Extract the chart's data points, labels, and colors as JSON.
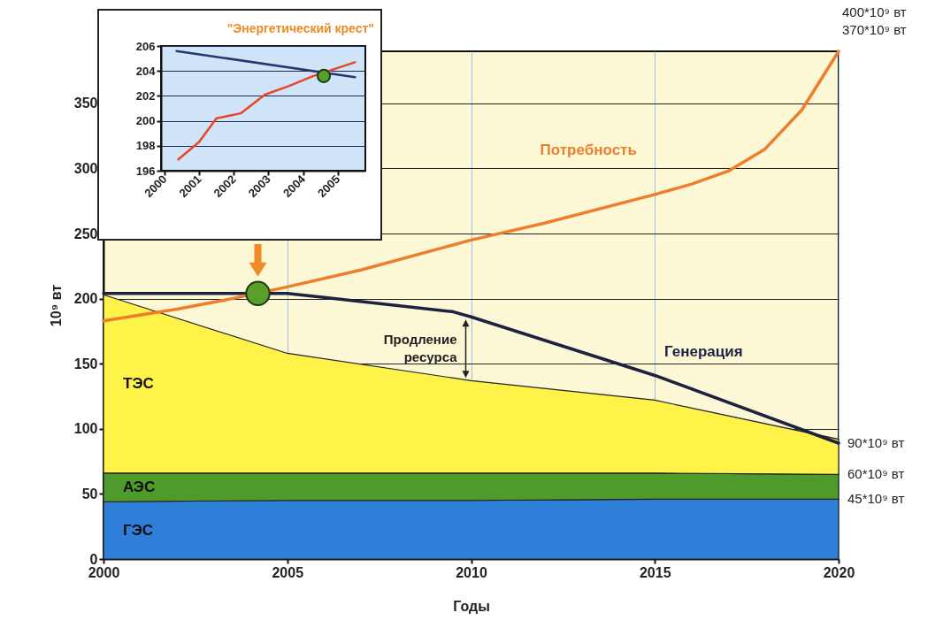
{
  "chart_data": [
    {
      "type": "area",
      "stacked": true,
      "xlabel": "Годы",
      "ylabel": "10⁹ вт",
      "x": [
        2000,
        2005,
        2010,
        2015,
        2020
      ],
      "xlim": [
        2000,
        2020
      ],
      "xticks": [
        2000,
        2005,
        2010,
        2015,
        2020
      ],
      "ylim": [
        0,
        390
      ],
      "yticks": [
        0,
        50,
        100,
        150,
        200,
        250,
        300,
        350
      ],
      "grid": true,
      "annotations": [
        "400*10⁹ вт",
        "370*10⁹ вт",
        "90*10⁹ вт",
        "60*10⁹ вт",
        "45*10⁹ вт",
        "Продление ресурса"
      ],
      "series": [
        {
          "name": "ГЭС",
          "color": "#2f7fd8",
          "values": [
            44,
            45,
            45,
            46,
            46
          ]
        },
        {
          "name": "АЭС",
          "color": "#4e9a2a",
          "values": [
            22,
            21,
            21,
            20,
            19
          ]
        },
        {
          "name": "ТЭС",
          "color": "#fff34a",
          "values": [
            137,
            92,
            71,
            56,
            27
          ]
        },
        {
          "name": "Генерация",
          "type": "line",
          "color": "#1e2140",
          "x": [
            2000,
            2005,
            2006,
            2009.5,
            2010,
            2015,
            2020
          ],
          "values": [
            204,
            204,
            201,
            190,
            186,
            141,
            89
          ]
        },
        {
          "name": "Потребность",
          "type": "line",
          "color": "#ee7d2c",
          "x": [
            2000,
            2002,
            2003.5,
            2005,
            2007,
            2010,
            2012,
            2015,
            2016,
            2017,
            2018,
            2019,
            2020
          ],
          "values": [
            183,
            192,
            200,
            209,
            222,
            245,
            258,
            280,
            288,
            298,
            315,
            345,
            390
          ]
        },
        {
          "type": "scatter",
          "color": "#5a9e2c",
          "x": [
            2004.2
          ],
          "values": [
            204
          ]
        }
      ]
    },
    {
      "type": "line",
      "title": "\"Энергетический крест\"",
      "xlim": [
        1999.9,
        2005.8
      ],
      "xticks": [
        2000,
        2001,
        2002,
        2003,
        2004,
        2005
      ],
      "ylim": [
        196,
        206
      ],
      "yticks": [
        196,
        198,
        200,
        202,
        204,
        206
      ],
      "grid": "y",
      "series": [
        {
          "color": "#2a3570",
          "x": [
            2000.35,
            2005.5
          ],
          "values": [
            205.6,
            203.5
          ]
        },
        {
          "color": "#e8452a",
          "x": [
            2000.4,
            2001,
            2001.5,
            2002.2,
            2002.9,
            2003.6,
            2004.3,
            2005.5
          ],
          "values": [
            196.9,
            198.3,
            200.2,
            200.6,
            202.1,
            202.8,
            203.6,
            204.7
          ]
        },
        {
          "type": "scatter",
          "color": "#5a9e2c",
          "x": [
            2004.6
          ],
          "values": [
            203.6
          ]
        }
      ]
    }
  ]
}
